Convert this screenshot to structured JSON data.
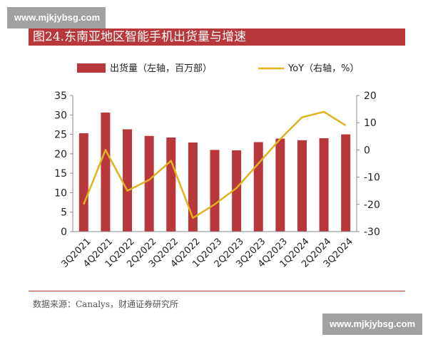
{
  "watermark_text": "www.mjkjybsg.com",
  "title": "图24.东南亚地区智能手机出货量与增速",
  "source": "数据来源：Canalys，财通证券研究所",
  "chart_data": {
    "type": "bar+line",
    "categories": [
      "3Q2021",
      "4Q2021",
      "1Q2022",
      "2Q2022",
      "3Q2022",
      "4Q2022",
      "1Q2023",
      "2Q2023",
      "3Q2023",
      "4Q2023",
      "1Q2024",
      "2Q2024",
      "3Q2024"
    ],
    "series": [
      {
        "name": "出货量（左轴，百万部）",
        "type": "bar",
        "axis": "left",
        "color": "#b8373a",
        "values": [
          25.3,
          30.6,
          26.3,
          24.6,
          24.2,
          22.9,
          21.0,
          20.9,
          23.0,
          23.9,
          23.5,
          24.0,
          25.0
        ]
      },
      {
        "name": "YoY（右轴，%）",
        "type": "line",
        "axis": "right",
        "color": "#e0b21e",
        "values": [
          -20,
          0,
          -15,
          -11,
          -4,
          -25,
          -20,
          -14,
          -5,
          4,
          12,
          14,
          9
        ]
      }
    ],
    "left_axis": {
      "min": 0,
      "max": 35,
      "ticks": [
        0,
        5,
        10,
        15,
        20,
        25,
        30,
        35
      ]
    },
    "right_axis": {
      "min": -30,
      "max": 20,
      "ticks": [
        -30,
        -20,
        -10,
        0,
        10,
        20
      ]
    },
    "legend": "top"
  }
}
